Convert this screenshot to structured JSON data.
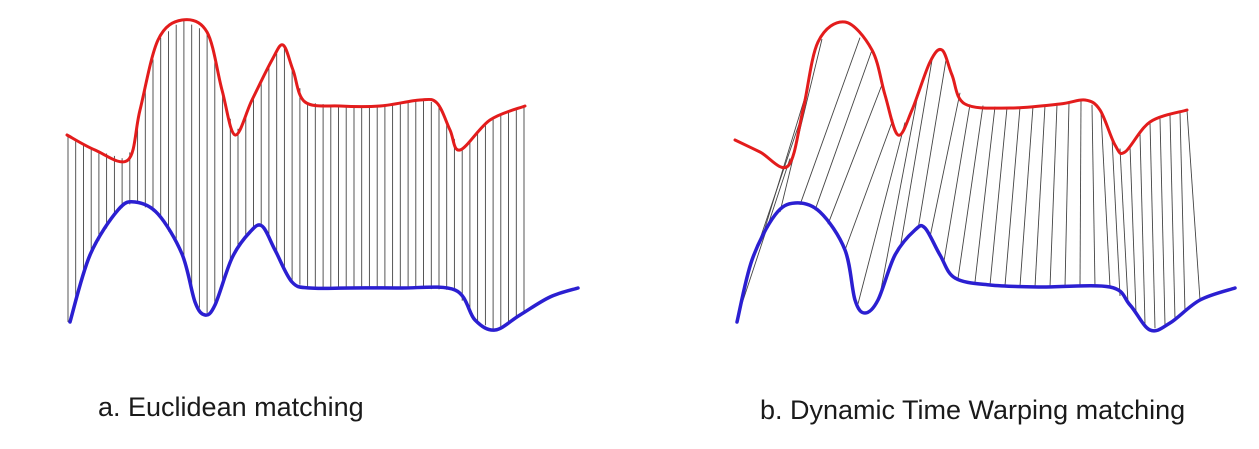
{
  "panels": [
    {
      "id": "euclidean",
      "caption": "a. Euclidean matching",
      "colors": {
        "series_top": "#e31c1c",
        "series_bottom": "#2b1fd1",
        "connectors": "#444444"
      },
      "matching": "same-index (vertical connectors)",
      "connector_count": 60
    },
    {
      "id": "dtw",
      "caption": "b. Dynamic Time Warping matching",
      "colors": {
        "series_top": "#e31c1c",
        "series_bottom": "#2b1fd1",
        "connectors": "#444444"
      },
      "matching": "warped (slanted connectors)",
      "connector_count": 38
    }
  ]
}
